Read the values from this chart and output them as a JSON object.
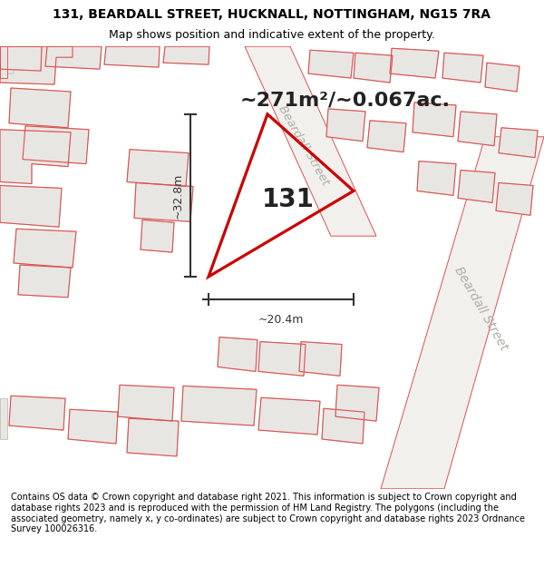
{
  "title_line1": "131, BEARDALL STREET, HUCKNALL, NOTTINGHAM, NG15 7RA",
  "title_line2": "Map shows position and indicative extent of the property.",
  "area_text": "~271m²/~0.067ac.",
  "label_131": "131",
  "dim_height": "~32.8m",
  "dim_width": "~20.4m",
  "footer_text": "Contains OS data © Crown copyright and database right 2021. This information is subject to Crown copyright and database rights 2023 and is reproduced with the permission of HM Land Registry. The polygons (including the associated geometry, namely x, y co-ordinates) are subject to Crown copyright and database rights 2023 Ordnance Survey 100026316.",
  "bg_color": "#ffffff",
  "map_bg": "#f7f6f4",
  "building_fill": "#e8e6e2",
  "building_edge": "#c8c5c0",
  "red_outline": "#e05050",
  "plot_red": "#cc0000",
  "dim_color": "#333333",
  "text_dark": "#222222",
  "street_text_color": "#b0aeaa",
  "area_fontsize": 16,
  "title_fontsize": 10,
  "subtitle_fontsize": 9,
  "label_fontsize": 20,
  "dim_fontsize": 9,
  "footer_fontsize": 7
}
